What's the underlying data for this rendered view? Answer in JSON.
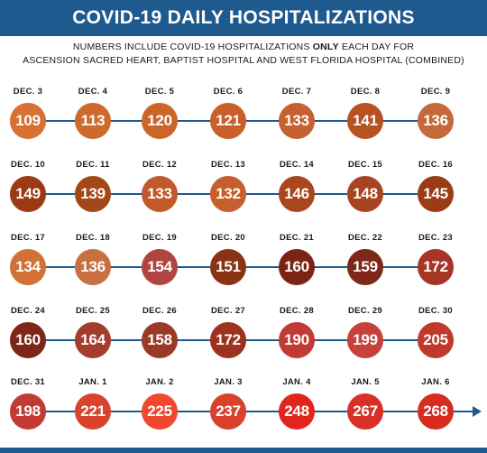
{
  "title": "COVID-19 DAILY HOSPITALIZATIONS",
  "subtitle": {
    "line1_before": "NUMBERS INCLUDE COVID-19 HOSPITALIZATIONS ",
    "line1_bold": "ONLY",
    "line1_after": " EACH DAY FOR",
    "line2": "ASCENSION SACRED HEART, BAPTIST HOSPITAL AND WEST FLORIDA HOSPITAL (COMBINED)"
  },
  "colors": {
    "header": "#1e5a8e",
    "line": "#1e5a8e"
  },
  "rows": [
    {
      "days": [
        {
          "date": "DEC. 3",
          "value": "109",
          "color": "#d77030"
        },
        {
          "date": "DEC. 4",
          "value": "113",
          "color": "#d06a2c"
        },
        {
          "date": "DEC. 5",
          "value": "120",
          "color": "#cc6628"
        },
        {
          "date": "DEC. 6",
          "value": "121",
          "color": "#c9602a"
        },
        {
          "date": "DEC. 7",
          "value": "133",
          "color": "#c66030"
        },
        {
          "date": "DEC. 8",
          "value": "141",
          "color": "#b85220"
        },
        {
          "date": "DEC. 9",
          "value": "136",
          "color": "#c5683a"
        }
      ]
    },
    {
      "days": [
        {
          "date": "DEC. 10",
          "value": "149",
          "color": "#9b3a14"
        },
        {
          "date": "DEC. 11",
          "value": "139",
          "color": "#a24818"
        },
        {
          "date": "DEC. 12",
          "value": "133",
          "color": "#c05a2a"
        },
        {
          "date": "DEC. 13",
          "value": "132",
          "color": "#c65f2b"
        },
        {
          "date": "DEC. 14",
          "value": "146",
          "color": "#a9461e"
        },
        {
          "date": "DEC. 15",
          "value": "148",
          "color": "#a84520"
        },
        {
          "date": "DEC. 16",
          "value": "145",
          "color": "#9a3c16"
        }
      ]
    },
    {
      "days": [
        {
          "date": "DEC. 17",
          "value": "134",
          "color": "#d27135"
        },
        {
          "date": "DEC. 18",
          "value": "136",
          "color": "#c97040"
        },
        {
          "date": "DEC. 19",
          "value": "154",
          "color": "#b1443e"
        },
        {
          "date": "DEC. 20",
          "value": "151",
          "color": "#8a3314"
        },
        {
          "date": "DEC. 21",
          "value": "160",
          "color": "#7a2414"
        },
        {
          "date": "DEC. 22",
          "value": "159",
          "color": "#7d2818"
        },
        {
          "date": "DEC. 23",
          "value": "172",
          "color": "#a63526"
        }
      ]
    },
    {
      "days": [
        {
          "date": "DEC. 24",
          "value": "160",
          "color": "#7e2718"
        },
        {
          "date": "DEC. 25",
          "value": "164",
          "color": "#a43d2e"
        },
        {
          "date": "DEC. 26",
          "value": "158",
          "color": "#9c3926"
        },
        {
          "date": "DEC. 27",
          "value": "172",
          "color": "#9d3220"
        },
        {
          "date": "DEC. 28",
          "value": "190",
          "color": "#c23a36"
        },
        {
          "date": "DEC. 29",
          "value": "199",
          "color": "#c8403a"
        },
        {
          "date": "DEC. 30",
          "value": "205",
          "color": "#c0392b"
        }
      ]
    },
    {
      "days": [
        {
          "date": "DEC. 31",
          "value": "198",
          "color": "#c23a32"
        },
        {
          "date": "JAN. 1",
          "value": "221",
          "color": "#d8432e"
        },
        {
          "date": "JAN. 2",
          "value": "225",
          "color": "#f0472e"
        },
        {
          "date": "JAN. 3",
          "value": "237",
          "color": "#d9412b"
        },
        {
          "date": "JAN. 4",
          "value": "248",
          "color": "#e2251c"
        },
        {
          "date": "JAN. 5",
          "value": "267",
          "color": "#d92f26"
        },
        {
          "date": "JAN. 6",
          "value": "268",
          "color": "#d72b20"
        }
      ]
    }
  ]
}
